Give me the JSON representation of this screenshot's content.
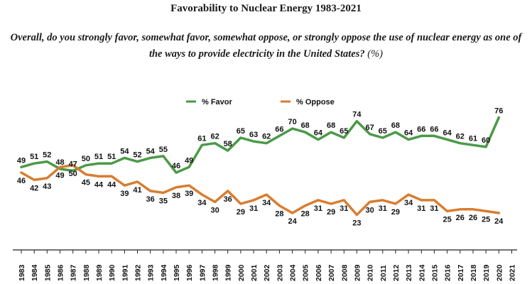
{
  "chart_data": {
    "type": "line",
    "title": "Favorability to Nuclear Energy 1983-2021",
    "subtitle": "Overall, do you strongly favor, somewhat favor, somewhat oppose, or strongly oppose the use of nuclear energy as one of the ways to provide electricity in the United States?",
    "subtitle_unit": "(%)",
    "x": [
      "1983",
      "1984",
      "1985",
      "1986",
      "1987",
      "1988",
      "1989",
      "1990",
      "1991",
      "1992",
      "1993",
      "1994",
      "1995",
      "1996",
      "1997",
      "1998",
      "1999",
      "2000",
      "2001",
      "2002",
      "2003",
      "2004",
      "2005",
      "2006",
      "2007",
      "2008",
      "2009",
      "2010",
      "2011",
      "2012",
      "2013",
      "2014",
      "2015",
      "2016",
      "2017",
      "2018",
      "2019",
      "2020",
      "2021"
    ],
    "series": [
      {
        "name": "% Favor",
        "color": "#4a9a47",
        "values": [
          49,
          51,
          52,
          48,
          47,
          50,
          51,
          51,
          54,
          52,
          54,
          55,
          46,
          49,
          61,
          62,
          58,
          65,
          63,
          62,
          66,
          70,
          68,
          64,
          68,
          65,
          74,
          67,
          65,
          68,
          64,
          66,
          66,
          64,
          62,
          61,
          60,
          76,
          null
        ]
      },
      {
        "name": "% Oppose",
        "color": "#d97d2f",
        "values": [
          46,
          42,
          43,
          49,
          50,
          45,
          44,
          44,
          39,
          41,
          36,
          35,
          38,
          39,
          34,
          30,
          36,
          29,
          31,
          34,
          28,
          24,
          28,
          31,
          29,
          31,
          23,
          30,
          31,
          29,
          34,
          31,
          31,
          25,
          26,
          26,
          25,
          24,
          null
        ]
      }
    ],
    "legend_position": "top-center",
    "grid": false
  }
}
